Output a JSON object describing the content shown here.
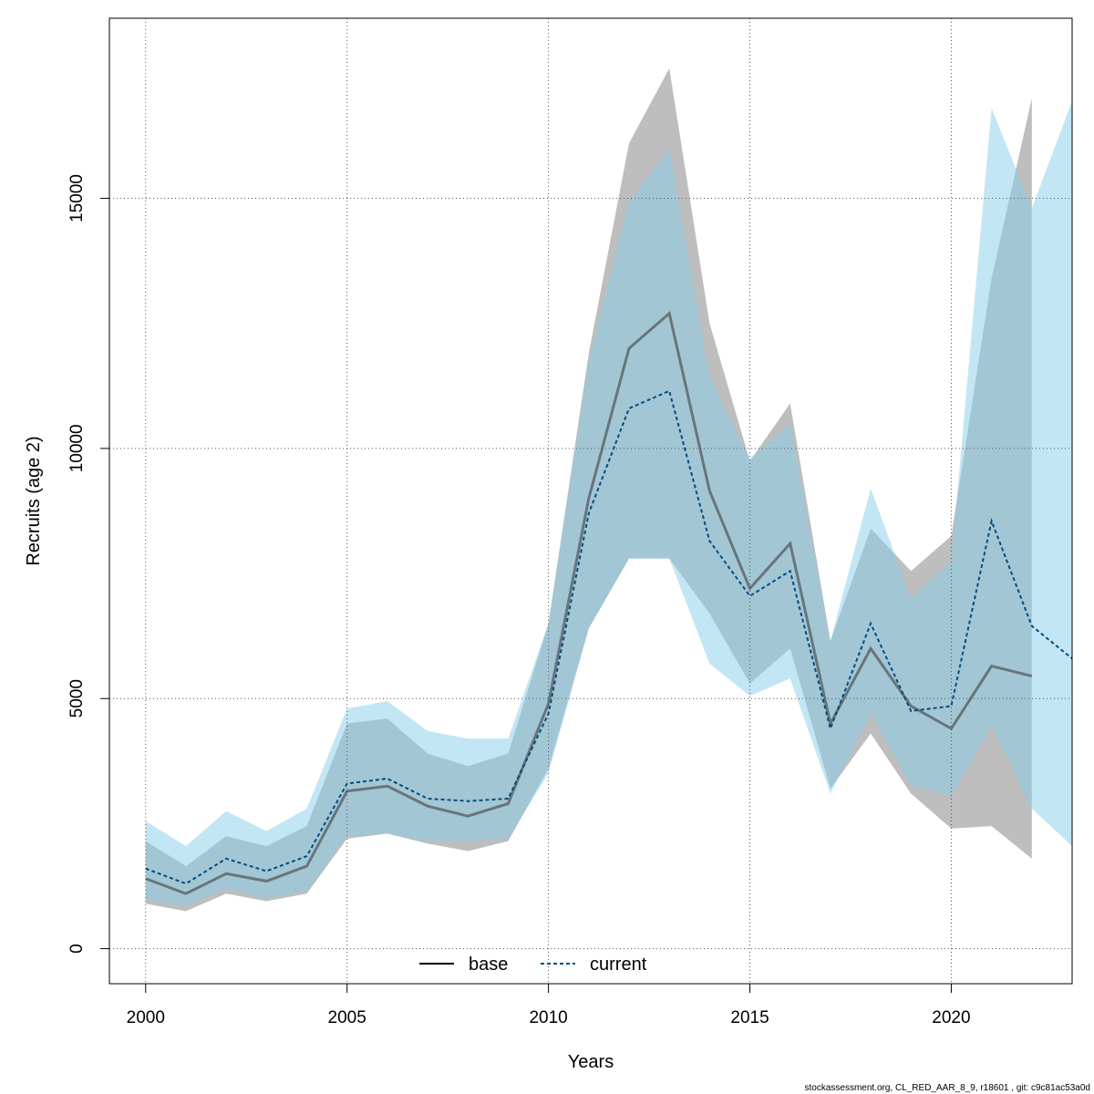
{
  "chart_data": {
    "type": "line",
    "xlabel": "Years",
    "ylabel": "Recruits (age 2)",
    "xlim": [
      1999.1,
      2023
    ],
    "ylim": [
      -700,
      18600
    ],
    "x_ticks": [
      2000,
      2005,
      2010,
      2015,
      2020
    ],
    "y_ticks": [
      0,
      5000,
      10000,
      15000
    ],
    "grid": true,
    "legend_position": "bottom-center",
    "footer": "stockassessment.org, CL_RED_AAR_8_9, r18601 , git: c9c81ac53a0d",
    "series": [
      {
        "name": "base",
        "color": "#404040",
        "band_color": "#bebebe",
        "line_style": "solid",
        "x": [
          2000,
          2001,
          2002,
          2003,
          2004,
          2005,
          2006,
          2007,
          2008,
          2009,
          2010,
          2011,
          2012,
          2013,
          2014,
          2015,
          2016,
          2017,
          2018,
          2019,
          2020,
          2021,
          2022
        ],
        "values": [
          1400,
          1100,
          1500,
          1350,
          1650,
          3150,
          3250,
          2850,
          2650,
          2900,
          4900,
          9000,
          12000,
          12700,
          9150,
          7200,
          8100,
          4500,
          6000,
          4850,
          4400,
          5650,
          5450
        ],
        "lower": [
          900,
          750,
          1100,
          950,
          1100,
          2200,
          2300,
          2100,
          1950,
          2150,
          3600,
          6400,
          7800,
          7800,
          6700,
          5300,
          6000,
          3200,
          4300,
          3100,
          2400,
          2450,
          1800
        ],
        "upper": [
          2150,
          1650,
          2250,
          2050,
          2450,
          4500,
          4600,
          3900,
          3650,
          3900,
          6500,
          11900,
          16100,
          17600,
          12500,
          9750,
          10900,
          6150,
          8400,
          7550,
          8250,
          13400,
          17000
        ]
      },
      {
        "name": "current",
        "color": "#004d80",
        "band_color": "#87ceeb",
        "line_style": "dashed",
        "x": [
          2000,
          2001,
          2002,
          2003,
          2004,
          2005,
          2006,
          2007,
          2008,
          2009,
          2010,
          2011,
          2012,
          2013,
          2014,
          2015,
          2016,
          2017,
          2018,
          2019,
          2020,
          2021,
          2022,
          2023
        ],
        "values": [
          1600,
          1300,
          1800,
          1550,
          1850,
          3300,
          3400,
          3000,
          2950,
          3000,
          4700,
          8700,
          10800,
          11150,
          8150,
          7050,
          7550,
          4400,
          6500,
          4750,
          4850,
          8550,
          6450,
          5800
        ],
        "lower": [
          1000,
          850,
          1200,
          1000,
          1150,
          2250,
          2300,
          2150,
          2150,
          2200,
          3500,
          6400,
          7800,
          7800,
          5700,
          5050,
          5400,
          3100,
          4700,
          3250,
          3050,
          4450,
          2800,
          2050
        ],
        "upper": [
          2550,
          2050,
          2750,
          2350,
          2800,
          4800,
          4950,
          4350,
          4200,
          4200,
          6500,
          11750,
          14950,
          16000,
          11450,
          9800,
          10500,
          6150,
          9200,
          7000,
          7750,
          16800,
          14800,
          16950
        ]
      }
    ]
  }
}
